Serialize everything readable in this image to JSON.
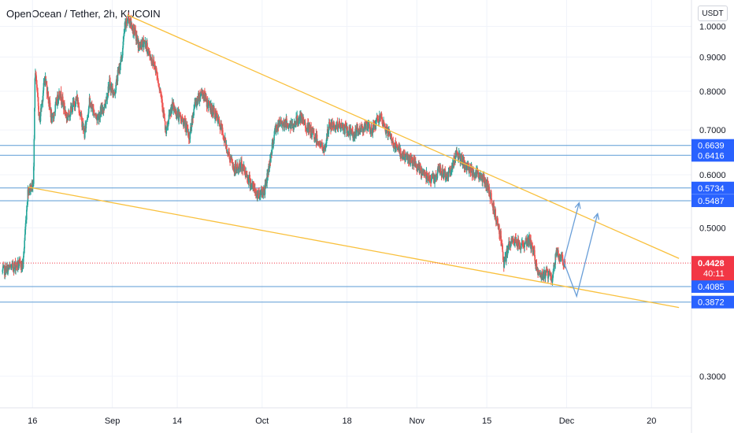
{
  "header": {
    "symbol_title": "OpenOcean / Tether, 2h, KUCOIN",
    "currency_button": "USDT"
  },
  "colors": {
    "up": "#26a69a",
    "down": "#ef5350",
    "trendline": "#f9c03c",
    "level": "#5b9bd5",
    "level_label_bg": "#2962ff",
    "price_label_bg": "#f23645",
    "projection": "#6a9fd8"
  },
  "chart_data": {
    "type": "candlestick",
    "y_scale": "log",
    "ylim": [
      0.275,
      1.06
    ],
    "y_ticks": [
      "1.0000",
      "0.9000",
      "0.8000",
      "0.7000",
      "0.6000",
      "0.5000",
      "0.3000"
    ],
    "y_tick_values": [
      1.0,
      0.9,
      0.8,
      0.7,
      0.6,
      0.5,
      0.3
    ],
    "x_ticks": [
      "16",
      "Sep",
      "14",
      "Oct",
      "18",
      "Nov",
      "15",
      "Dec",
      "20"
    ],
    "x_tick_days": [
      16,
      32,
      45,
      62,
      79,
      93,
      107,
      123,
      140
    ],
    "x_range_days": [
      9.5,
      148
    ],
    "x_axis_note": "x values are days counted from Aug 1",
    "price_path": [
      [
        10.0,
        0.43
      ],
      [
        13.0,
        0.44
      ],
      [
        14.2,
        0.44
      ],
      [
        15.2,
        0.57
      ],
      [
        16.3,
        0.58
      ],
      [
        16.6,
        0.86
      ],
      [
        17.5,
        0.72
      ],
      [
        18.6,
        0.84
      ],
      [
        20.0,
        0.72
      ],
      [
        21.5,
        0.8
      ],
      [
        23.0,
        0.73
      ],
      [
        25.0,
        0.78
      ],
      [
        26.5,
        0.69
      ],
      [
        27.5,
        0.77
      ],
      [
        29.0,
        0.73
      ],
      [
        30.5,
        0.76
      ],
      [
        31.5,
        0.82
      ],
      [
        32.5,
        0.79
      ],
      [
        33.2,
        0.85
      ],
      [
        34.0,
        0.9
      ],
      [
        34.6,
        1.0
      ],
      [
        35.3,
        1.03
      ],
      [
        36.5,
        0.98
      ],
      [
        37.5,
        0.93
      ],
      [
        38.5,
        0.95
      ],
      [
        39.7,
        0.9
      ],
      [
        40.7,
        0.87
      ],
      [
        42.0,
        0.78
      ],
      [
        42.8,
        0.69
      ],
      [
        44.0,
        0.76
      ],
      [
        45.6,
        0.73
      ],
      [
        46.5,
        0.72
      ],
      [
        47.5,
        0.68
      ],
      [
        48.5,
        0.76
      ],
      [
        50.0,
        0.8
      ],
      [
        51.0,
        0.77
      ],
      [
        52.6,
        0.74
      ],
      [
        54.0,
        0.7
      ],
      [
        55.2,
        0.65
      ],
      [
        56.5,
        0.61
      ],
      [
        58.0,
        0.62
      ],
      [
        59.5,
        0.59
      ],
      [
        61.0,
        0.56
      ],
      [
        62.6,
        0.57
      ],
      [
        63.5,
        0.62
      ],
      [
        64.7,
        0.7
      ],
      [
        66.0,
        0.72
      ],
      [
        68.0,
        0.71
      ],
      [
        69.6,
        0.73
      ],
      [
        71.5,
        0.7
      ],
      [
        73.0,
        0.68
      ],
      [
        74.5,
        0.65
      ],
      [
        75.5,
        0.71
      ],
      [
        77.5,
        0.71
      ],
      [
        79.0,
        0.7
      ],
      [
        80.5,
        0.69
      ],
      [
        82.5,
        0.71
      ],
      [
        84.0,
        0.7
      ],
      [
        85.5,
        0.73
      ],
      [
        86.5,
        0.71
      ],
      [
        87.5,
        0.69
      ],
      [
        88.7,
        0.66
      ],
      [
        90.5,
        0.64
      ],
      [
        92.0,
        0.63
      ],
      [
        93.5,
        0.61
      ],
      [
        95.0,
        0.6
      ],
      [
        96.5,
        0.59
      ],
      [
        97.5,
        0.61
      ],
      [
        99.0,
        0.6
      ],
      [
        100.0,
        0.61
      ],
      [
        101.0,
        0.65
      ],
      [
        102.5,
        0.62
      ],
      [
        104.0,
        0.61
      ],
      [
        105.5,
        0.6
      ],
      [
        107.2,
        0.58
      ],
      [
        108.6,
        0.53
      ],
      [
        109.8,
        0.49
      ],
      [
        110.5,
        0.44
      ],
      [
        111.5,
        0.47
      ],
      [
        112.5,
        0.48
      ],
      [
        114.0,
        0.47
      ],
      [
        115.5,
        0.48
      ],
      [
        116.5,
        0.46
      ],
      [
        117.2,
        0.43
      ],
      [
        118.3,
        0.42
      ],
      [
        119.0,
        0.43
      ],
      [
        120.2,
        0.42
      ],
      [
        121.0,
        0.46
      ],
      [
        122.0,
        0.45
      ],
      [
        122.7,
        0.4428
      ]
    ],
    "trendlines": [
      {
        "from": [
          35.0,
          1.04
        ],
        "to": [
          145.5,
          0.45
        ]
      },
      {
        "from": [
          15.2,
          0.575
        ],
        "to": [
          145.5,
          0.38
        ]
      }
    ],
    "horizontal_levels": [
      0.6639,
      0.6416,
      0.5734,
      0.5487,
      0.4085,
      0.3872
    ],
    "level_labels": [
      "0.6639",
      "0.6416",
      "0.5734",
      "0.5487",
      "0.4085",
      "0.3872"
    ],
    "projection_arrows": [
      {
        "points": [
          [
            122.4,
            0.445
          ],
          [
            125.5,
            0.545
          ]
        ]
      },
      {
        "points": [
          [
            122.4,
            0.445
          ],
          [
            125.0,
            0.395
          ],
          [
            129.2,
            0.525
          ]
        ]
      }
    ],
    "current_price": {
      "price": "0.4428",
      "countdown": "40:11"
    }
  }
}
